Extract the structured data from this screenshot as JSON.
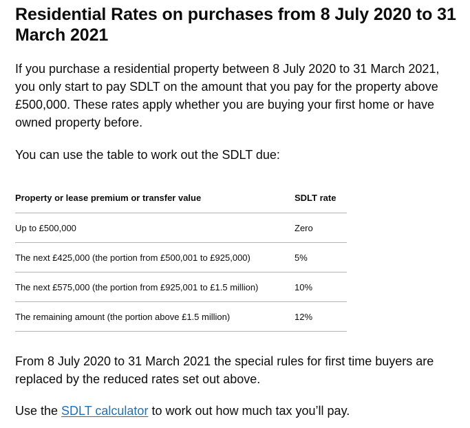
{
  "heading": "Residential Rates on purchases from 8 July 2020 to 31 March 2021",
  "intro": "If you purchase a residential property between 8 July 2020 to 31 March 2021, you only start to pay SDLT on the amount that you pay for the property above £500,000. These rates apply whether you are buying your first home or have owned property before.",
  "table_intro": "You can use the table to work out the SDLT due:",
  "table": {
    "headers": [
      "Property or lease premium or transfer value",
      "SDLT rate"
    ],
    "rows": [
      [
        "Up to £500,000",
        "Zero"
      ],
      [
        "The next £425,000 (the portion from £500,001 to £925,000)",
        "5%"
      ],
      [
        "The next £575,000 (the portion from £925,001 to £1.5 million)",
        "10%"
      ],
      [
        "The remaining amount (the portion above £1.5 million)",
        "12%"
      ]
    ]
  },
  "first_time_buyers": "From 8 July 2020 to 31 March 2021 the special rules for first time buyers are replaced by the reduced rates set out above.",
  "calculator": {
    "prefix": "Use the ",
    "link_text": "SDLT calculator",
    "suffix": " to work out how much tax you’ll pay."
  },
  "colors": {
    "text": "#0b0c0c",
    "link": "#1d70b8",
    "border": "#b1b4b6"
  }
}
